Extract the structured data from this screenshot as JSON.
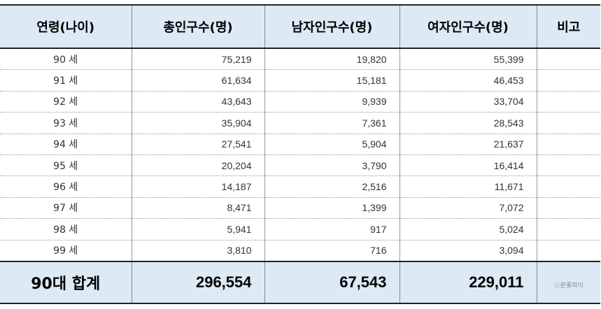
{
  "header": {
    "age": "연령(나이)",
    "total": "총인구수(명)",
    "male": "남자인구수(명)",
    "female": "여자인구수(명)",
    "note": "비고"
  },
  "rows": [
    {
      "age": "90 세",
      "total": "75,219",
      "male": "19,820",
      "female": "55,399",
      "note": ""
    },
    {
      "age": "91 세",
      "total": "61,634",
      "male": "15,181",
      "female": "46,453",
      "note": ""
    },
    {
      "age": "92 세",
      "total": "43,643",
      "male": "9,939",
      "female": "33,704",
      "note": ""
    },
    {
      "age": "93 세",
      "total": "35,904",
      "male": "7,361",
      "female": "28,543",
      "note": ""
    },
    {
      "age": "94 세",
      "total": "27,541",
      "male": "5,904",
      "female": "21,637",
      "note": ""
    },
    {
      "age": "95 세",
      "total": "20,204",
      "male": "3,790",
      "female": "16,414",
      "note": ""
    },
    {
      "age": "96 세",
      "total": "14,187",
      "male": "2,516",
      "female": "11,671",
      "note": ""
    },
    {
      "age": "97 세",
      "total": "8,471",
      "male": "1,399",
      "female": "7,072",
      "note": ""
    },
    {
      "age": "98 세",
      "total": "5,941",
      "male": "917",
      "female": "5,024",
      "note": ""
    },
    {
      "age": "99 세",
      "total": "3,810",
      "male": "716",
      "female": "3,094",
      "note": ""
    }
  ],
  "footer": {
    "label": "90대 합계",
    "total": "296,554",
    "male": "67,543",
    "female": "229,011",
    "watermark": "ⓒ본좋파이"
  }
}
